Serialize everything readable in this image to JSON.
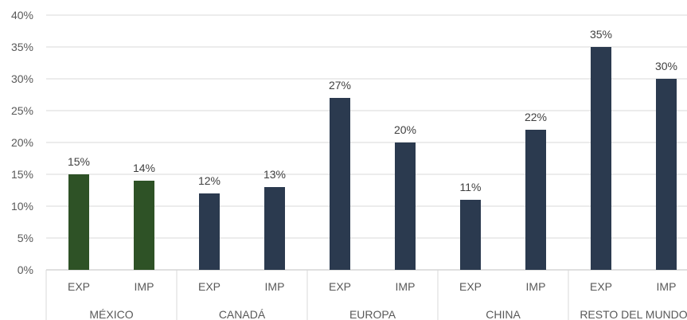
{
  "chart_data": {
    "type": "bar",
    "title": "",
    "xlabel": "",
    "ylabel": "",
    "ylim": [
      0,
      40
    ],
    "y_ticks": [
      "0%",
      "5%",
      "10%",
      "15%",
      "20%",
      "25%",
      "30%",
      "35%",
      "40%"
    ],
    "grid": true,
    "legend": "none",
    "groups": [
      {
        "name": "MÉXICO",
        "categories": [
          "EXP",
          "IMP"
        ],
        "values": [
          15,
          14
        ],
        "labels": [
          "15%",
          "14%"
        ],
        "color": "#2e5226"
      },
      {
        "name": "CANADÁ",
        "categories": [
          "EXP",
          "IMP"
        ],
        "values": [
          12,
          13
        ],
        "labels": [
          "12%",
          "13%"
        ],
        "color": "#2b3a4f"
      },
      {
        "name": "EUROPA",
        "categories": [
          "EXP",
          "IMP"
        ],
        "values": [
          27,
          20
        ],
        "labels": [
          "27%",
          "20%"
        ],
        "color": "#2b3a4f"
      },
      {
        "name": "CHINA",
        "categories": [
          "EXP",
          "IMP"
        ],
        "values": [
          11,
          22
        ],
        "labels": [
          "11%",
          "22%"
        ],
        "color": "#2b3a4f"
      },
      {
        "name": "RESTO DEL MUNDO",
        "categories": [
          "EXP",
          "IMP"
        ],
        "values": [
          35,
          30
        ],
        "labels": [
          "35%",
          "30%"
        ],
        "color": "#2b3a4f"
      }
    ]
  }
}
